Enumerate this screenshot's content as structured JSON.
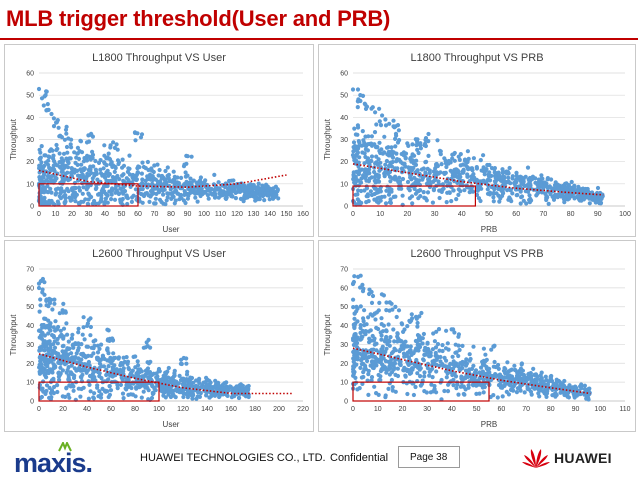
{
  "slide": {
    "title": "MLB trigger threshold(User and PRB)",
    "footer": {
      "left_logo": "maxis.",
      "company": "HUAWEI TECHNOLOGIES CO., LTD.",
      "confidential": "Confidential",
      "page": "Page 38",
      "right_logo": "HUAWEI"
    }
  },
  "colors": {
    "title": "#c00000",
    "points": "#5b9bd5",
    "trend": "#c00000",
    "threshold_box": "#c00000",
    "gridline": "#d9d9d9"
  },
  "chart_data": [
    {
      "type": "scatter",
      "title": "L1800 Throughput VS User",
      "xlabel": "User",
      "ylabel": "Throughput",
      "xlim": [
        0,
        160
      ],
      "ylim": [
        0,
        60
      ],
      "xticks": [
        0,
        10,
        20,
        30,
        40,
        50,
        60,
        70,
        80,
        90,
        100,
        110,
        120,
        130,
        140,
        150,
        160
      ],
      "yticks": [
        0,
        10,
        20,
        30,
        40,
        50,
        60
      ],
      "grid": true,
      "trendline": {
        "style": "dotted",
        "points": [
          [
            0,
            16
          ],
          [
            30,
            11
          ],
          [
            60,
            9
          ],
          [
            90,
            8.5
          ],
          [
            120,
            10
          ],
          [
            150,
            14
          ]
        ]
      },
      "threshold_box": {
        "x": [
          0,
          60
        ],
        "y": [
          0,
          10
        ]
      },
      "cloud": {
        "spine": [
          [
            0,
            12
          ],
          [
            20,
            13
          ],
          [
            40,
            11
          ],
          [
            60,
            10
          ],
          [
            80,
            9
          ],
          [
            100,
            8
          ],
          [
            120,
            7
          ],
          [
            145,
            6
          ]
        ],
        "spread": [
          [
            0,
            18
          ],
          [
            20,
            16
          ],
          [
            40,
            13
          ],
          [
            60,
            10
          ],
          [
            80,
            7
          ],
          [
            100,
            5
          ],
          [
            120,
            4
          ],
          [
            145,
            3
          ]
        ],
        "peaks": [
          [
            2,
            54
          ],
          [
            5,
            46
          ],
          [
            10,
            40
          ],
          [
            15,
            36
          ],
          [
            30,
            33
          ],
          [
            45,
            31
          ],
          [
            60,
            34
          ],
          [
            90,
            23
          ]
        ],
        "count": 900
      }
    },
    {
      "type": "scatter",
      "title": "L1800 Throughput VS PRB",
      "xlabel": "PRB",
      "ylabel": "Throughput",
      "xlim": [
        0,
        100
      ],
      "ylim": [
        0,
        60
      ],
      "xticks": [
        0,
        10,
        20,
        30,
        40,
        50,
        60,
        70,
        80,
        90,
        100
      ],
      "yticks": [
        0,
        10,
        20,
        30,
        40,
        50,
        60
      ],
      "grid": true,
      "trendline": {
        "style": "dotted",
        "points": [
          [
            0,
            19
          ],
          [
            20,
            15
          ],
          [
            40,
            11
          ],
          [
            60,
            8
          ],
          [
            80,
            6
          ],
          [
            92,
            5
          ]
        ]
      },
      "threshold_box": {
        "x": [
          0,
          45
        ],
        "y": [
          0,
          9
        ]
      },
      "cloud": {
        "spine": [
          [
            0,
            18
          ],
          [
            20,
            15
          ],
          [
            40,
            12
          ],
          [
            60,
            9
          ],
          [
            80,
            6
          ],
          [
            92,
            4
          ]
        ],
        "spread": [
          [
            0,
            20
          ],
          [
            20,
            14
          ],
          [
            40,
            10
          ],
          [
            60,
            7
          ],
          [
            80,
            4
          ],
          [
            92,
            3
          ]
        ],
        "peaks": [
          [
            2,
            53
          ],
          [
            4,
            49
          ],
          [
            8,
            45
          ],
          [
            14,
            39
          ],
          [
            25,
            33
          ],
          [
            40,
            25
          ],
          [
            55,
            17
          ],
          [
            70,
            12
          ]
        ],
        "count": 900
      }
    },
    {
      "type": "scatter",
      "title": "L2600 Throughput VS User",
      "xlabel": "User",
      "ylabel": "Throughput",
      "xlim": [
        0,
        220
      ],
      "ylim": [
        0,
        70
      ],
      "xticks": [
        0,
        20,
        40,
        60,
        80,
        100,
        120,
        140,
        160,
        180,
        200,
        220
      ],
      "yticks": [
        0,
        10,
        20,
        30,
        40,
        50,
        60,
        70
      ],
      "grid": true,
      "trendline": {
        "style": "dotted",
        "points": [
          [
            0,
            25
          ],
          [
            40,
            18
          ],
          [
            80,
            12
          ],
          [
            120,
            7
          ],
          [
            160,
            4
          ],
          [
            215,
            4
          ]
        ]
      },
      "threshold_box": {
        "x": [
          0,
          100
        ],
        "y": [
          0,
          10
        ]
      },
      "cloud": {
        "spine": [
          [
            0,
            24
          ],
          [
            30,
            20
          ],
          [
            60,
            15
          ],
          [
            90,
            11
          ],
          [
            120,
            8
          ],
          [
            150,
            6
          ],
          [
            175,
            5
          ]
        ],
        "spread": [
          [
            0,
            22
          ],
          [
            30,
            18
          ],
          [
            60,
            13
          ],
          [
            90,
            9
          ],
          [
            120,
            6
          ],
          [
            150,
            4
          ],
          [
            175,
            3
          ]
        ],
        "peaks": [
          [
            2,
            65
          ],
          [
            5,
            58
          ],
          [
            10,
            55
          ],
          [
            20,
            52
          ],
          [
            40,
            45
          ],
          [
            60,
            38
          ],
          [
            90,
            33
          ],
          [
            120,
            25
          ]
        ],
        "count": 900
      }
    },
    {
      "type": "scatter",
      "title": "L2600 Throughput VS PRB",
      "xlabel": "PRB",
      "ylabel": "Throughput",
      "xlim": [
        0,
        110
      ],
      "ylim": [
        0,
        70
      ],
      "xticks": [
        0,
        10,
        20,
        30,
        40,
        50,
        60,
        70,
        80,
        90,
        100,
        110
      ],
      "yticks": [
        0,
        10,
        20,
        30,
        40,
        50,
        60,
        70
      ],
      "grid": true,
      "trendline": {
        "style": "dotted",
        "points": [
          [
            0,
            28
          ],
          [
            20,
            22
          ],
          [
            40,
            16
          ],
          [
            60,
            11
          ],
          [
            80,
            7
          ],
          [
            96,
            4
          ]
        ]
      },
      "threshold_box": {
        "x": [
          0,
          55
        ],
        "y": [
          0,
          10
        ]
      },
      "cloud": {
        "spine": [
          [
            0,
            28
          ],
          [
            20,
            23
          ],
          [
            40,
            17
          ],
          [
            60,
            12
          ],
          [
            80,
            8
          ],
          [
            96,
            4
          ]
        ],
        "spread": [
          [
            0,
            24
          ],
          [
            20,
            18
          ],
          [
            40,
            13
          ],
          [
            60,
            9
          ],
          [
            80,
            5
          ],
          [
            96,
            3
          ]
        ],
        "peaks": [
          [
            2,
            67
          ],
          [
            5,
            62
          ],
          [
            10,
            58
          ],
          [
            15,
            53
          ],
          [
            25,
            47
          ],
          [
            40,
            40
          ],
          [
            55,
            30
          ],
          [
            70,
            20
          ]
        ],
        "count": 900
      }
    }
  ]
}
